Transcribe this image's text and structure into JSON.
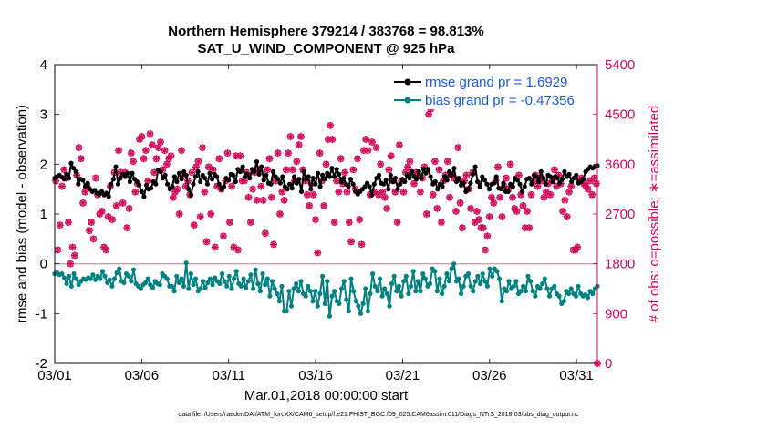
{
  "chart_data": {
    "type": "line",
    "title": "Northern Hemisphere 379214 / 383768 = 98.813%",
    "subtitle": "SAT_U_WIND_COMPONENT @ 925 hPa",
    "xlabel": "Mar.01,2018 00:00:00 start",
    "ylabel_left": "rmse and bias (model - observation)",
    "ylabel_right": "# of obs: o=possible; ∗=assimilated",
    "footer": "data file: /Users/raeder/DAI/ATM_forcXX/CAM6_setup/f.e21.FHIST_BGC.f09_025.CAM6assim.011/Diags_NTrS_2018-03/obs_diag_output.nc",
    "x_ticks": [
      "03/01",
      "03/06",
      "03/11",
      "03/16",
      "03/21",
      "03/26",
      "03/31"
    ],
    "x_tick_days": [
      1,
      6,
      11,
      16,
      21,
      26,
      31
    ],
    "xlim": [
      1,
      32.2
    ],
    "y_left_ticks": [
      "-2",
      "-1",
      "0",
      "1",
      "2",
      "3",
      "4"
    ],
    "ylim_left": [
      -2,
      4
    ],
    "y_right_ticks": [
      "0",
      "900",
      "1800",
      "2700",
      "3600",
      "4500",
      "5400"
    ],
    "ylim_right": [
      0,
      5400
    ],
    "zero_line": 0,
    "colors": {
      "rmse": "#000000",
      "bias": "#00807f",
      "obs": "#cc0a5a",
      "legend_text": "#1a5bd8",
      "zero_line": "#c8a3a8"
    },
    "series": [
      {
        "name": "rmse grand pr = 1.6929",
        "values": [
          1.72,
          1.75,
          1.78,
          1.74,
          1.7,
          1.8,
          1.72,
          2.02,
          1.92,
          1.85,
          1.6,
          1.7,
          1.68,
          1.55,
          1.62,
          1.5,
          1.45,
          1.48,
          1.42,
          1.4,
          1.45,
          1.38,
          1.42,
          1.35,
          1.6,
          1.7,
          1.95,
          1.6,
          1.72,
          1.8,
          1.75,
          1.82,
          1.65,
          1.82,
          1.7,
          1.65,
          1.58,
          1.45,
          1.35,
          1.58,
          1.5,
          1.52,
          1.65,
          1.6,
          1.88,
          1.85,
          1.72,
          1.78,
          1.6,
          1.5,
          1.55,
          1.75,
          1.65,
          1.82,
          1.7,
          1.85,
          1.78,
          1.5,
          1.38,
          1.6,
          1.75,
          1.85,
          1.65,
          1.78,
          1.72,
          1.6,
          1.82,
          1.7,
          1.8,
          1.75,
          1.6,
          1.5,
          1.55,
          1.72,
          1.68,
          1.8,
          1.78,
          1.65,
          1.9,
          1.85,
          1.95,
          1.75,
          1.8,
          1.72,
          1.9,
          1.85,
          2.05,
          1.8,
          1.95,
          1.68,
          1.78,
          1.62,
          1.6,
          1.85,
          1.75,
          1.7,
          1.62,
          1.75,
          1.55,
          1.5,
          1.6,
          1.52,
          1.75,
          1.62,
          1.7,
          1.45,
          1.85,
          1.7,
          1.75,
          1.5,
          1.72,
          1.6,
          1.82,
          1.55,
          1.78,
          1.7,
          1.82,
          1.75,
          1.92,
          1.75,
          1.9,
          1.8,
          1.65,
          1.72,
          1.6,
          1.55,
          1.7,
          1.6,
          1.45,
          1.4,
          1.45,
          1.5,
          1.55,
          1.62,
          1.55,
          1.38,
          1.6,
          1.72,
          1.78,
          1.62,
          1.6,
          1.68,
          1.5,
          1.78,
          1.65,
          1.72,
          1.5,
          1.6,
          1.7,
          1.65,
          1.78,
          1.72,
          1.85,
          1.75,
          1.7,
          1.85,
          1.72,
          1.9,
          1.82,
          1.9,
          1.75,
          1.6,
          1.65,
          1.5,
          1.6,
          1.55,
          1.75,
          1.68,
          1.85,
          1.78,
          1.92,
          1.65,
          1.72,
          1.58,
          1.62,
          1.45,
          1.5,
          1.62,
          1.8,
          1.95,
          1.65,
          1.55,
          1.75,
          1.68,
          1.6,
          1.5,
          1.6,
          1.62,
          1.75,
          1.52,
          1.5,
          1.62,
          1.45,
          1.45,
          1.6,
          1.55,
          1.72,
          1.68,
          1.6,
          1.45,
          1.55,
          1.7,
          1.72,
          1.6,
          1.78,
          1.75,
          1.65,
          1.85,
          1.72,
          1.6,
          1.78,
          1.75,
          1.65,
          1.75,
          1.72,
          1.62,
          1.7,
          1.85,
          1.75,
          1.8,
          1.65,
          1.72,
          1.78,
          1.62,
          1.65,
          1.7,
          1.85,
          1.9,
          1.95,
          1.92,
          1.95,
          1.97
        ]
      },
      {
        "name": "bias grand pr = -0.47356",
        "values": [
          -0.2,
          -0.18,
          -0.22,
          -0.2,
          -0.28,
          -0.4,
          -0.25,
          -0.45,
          -0.2,
          -0.3,
          -0.42,
          -0.35,
          -0.3,
          -0.32,
          -0.28,
          -0.3,
          -0.22,
          -0.32,
          -0.25,
          -0.3,
          -0.15,
          -0.25,
          -0.38,
          -0.32,
          -0.45,
          -0.3,
          -0.18,
          -0.1,
          -0.35,
          -0.38,
          -0.2,
          -0.25,
          -0.35,
          -0.12,
          -0.4,
          -0.45,
          -0.5,
          -0.42,
          -0.38,
          -0.3,
          -0.42,
          -0.48,
          -0.35,
          -0.4,
          -0.42,
          -0.2,
          -0.25,
          -0.3,
          -0.45,
          -0.45,
          -0.55,
          -0.25,
          -0.38,
          -0.3,
          -0.45,
          0.02,
          -0.5,
          -0.2,
          -0.42,
          -0.3,
          -0.55,
          -0.5,
          -0.35,
          -0.48,
          -0.38,
          -0.3,
          -0.42,
          -0.28,
          -0.35,
          -0.4,
          -0.2,
          -0.35,
          -0.45,
          -0.25,
          -0.5,
          -0.3,
          -0.15,
          -0.4,
          -0.45,
          -0.3,
          -0.48,
          -0.35,
          -0.22,
          -0.5,
          -0.12,
          -0.4,
          -0.55,
          -0.2,
          -0.42,
          -0.3,
          -0.65,
          -0.35,
          -0.5,
          -0.6,
          -0.75,
          -0.45,
          -0.95,
          -0.95,
          -0.55,
          -0.85,
          -0.5,
          -0.4,
          -0.55,
          -0.35,
          -0.6,
          -0.65,
          -0.45,
          -0.55,
          -0.75,
          -0.55,
          -0.85,
          -0.6,
          -0.25,
          -0.8,
          -0.35,
          -1.05,
          -0.65,
          -0.55,
          -0.75,
          -0.8,
          -0.5,
          -0.35,
          -0.72,
          -0.95,
          -0.3,
          -0.55,
          -0.75,
          -0.85,
          -1.0,
          -0.8,
          -0.5,
          -0.95,
          -0.6,
          -0.2,
          -0.45,
          -0.55,
          -0.3,
          -0.65,
          -0.5,
          -0.6,
          -0.85,
          -0.4,
          -0.25,
          -0.55,
          -0.45,
          -0.65,
          -0.35,
          -0.25,
          -0.6,
          -0.45,
          -0.15,
          -0.55,
          -0.35,
          -0.55,
          -0.2,
          -0.3,
          -0.45,
          -0.4,
          -0.1,
          -0.15,
          -0.55,
          -0.3,
          -0.6,
          -0.45,
          -0.2,
          -0.35,
          -0.1,
          0.0,
          -0.35,
          -0.3,
          -0.6,
          -0.45,
          -0.25,
          -0.2,
          -0.45,
          -0.55,
          -0.35,
          -0.25,
          -0.4,
          -0.2,
          -0.35,
          -0.45,
          -0.1,
          -0.25,
          -0.1,
          -0.15,
          -0.3,
          -0.75,
          -0.5,
          -0.55,
          -0.35,
          -0.5,
          -0.45,
          -0.35,
          -0.6,
          -0.55,
          -0.45,
          -0.55,
          -0.25,
          -0.35,
          -0.55,
          -0.65,
          -0.45,
          -0.5,
          -0.4,
          -0.3,
          -0.5,
          -0.65,
          -0.5,
          -0.45,
          -0.6,
          -0.65,
          -0.8,
          -0.75,
          -0.55,
          -0.6,
          -0.5,
          -0.6,
          -0.65,
          -0.45,
          -0.6,
          -0.65,
          -0.62,
          -0.68,
          -0.55,
          -0.6,
          -0.5,
          -0.45
        ]
      }
    ],
    "obs_counts": [
      3300,
      2050,
      2500,
      3200,
      3500,
      3350,
      2550,
      1800,
      2100,
      1950,
      3400,
      3900,
      3700,
      2900,
      3100,
      3200,
      2400,
      2550,
      2250,
      3350,
      3050,
      2700,
      2750,
      2100,
      2050,
      2650,
      3200,
      2600,
      3450,
      2850,
      3850,
      3450,
      2900,
      3450,
      2450,
      2800,
      3800,
      3650,
      3100,
      3250,
      4050,
      4100,
      3700,
      3850,
      3300,
      4150,
      3950,
      3450,
      3700,
      3900,
      4000,
      3500,
      3850,
      3600,
      3700,
      3750,
      3000,
      3100,
      3150,
      2700,
      3850,
      3400,
      3200,
      3300,
      3050,
      3450,
      2500,
      3550,
      3650,
      2650,
      3900,
      3100,
      2200,
      3550,
      2700,
      3500,
      2100,
      3200,
      3700,
      3150,
      2300,
      3300,
      3800,
      2550,
      3200,
      2100,
      3750,
      2050,
      3750,
      3300,
      3300,
      3450,
      3000,
      2550,
      3150,
      3450,
      2950,
      3500,
      3200,
      2950,
      2350,
      3500,
      3700,
      3000,
      2150,
      3300,
      3800,
      2700,
      3100,
      2950,
      3500,
      3800,
      4100,
      3500,
      3300,
      3650,
      3950,
      4100,
      3500,
      3300,
      3050,
      2850,
      3250,
      3050,
      2600,
      2000,
      3800,
      3300,
      2850,
      3600,
      4050,
      4300,
      4050,
      2550,
      3300,
      3100,
      3700,
      3250,
      3450,
      3100,
      2550,
      2200,
      3500,
      3150,
      3700,
      2600,
      2150,
      3850,
      4050,
      3850,
      3050,
      4000,
      3100,
      3900,
      3050,
      3600,
      3100,
      3000,
      2800,
      3500,
      3750,
      3300,
      3100,
      2550,
      3950,
      3300,
      3100,
      3450,
      3550,
      3650,
      3450,
      3250,
      3450,
      3400,
      3100,
      3350,
      3550,
      2700,
      4500,
      4600,
      3050,
      3650,
      2800,
      3500,
      2550,
      3300,
      3400,
      3650,
      3000,
      3400,
      3350,
      2750,
      3900,
      2900,
      2450,
      3300,
      3400,
      3150,
      2800,
      3450,
      2550,
      2750,
      2600,
      2450,
      2450,
      2050,
      2300,
      2650,
      3000,
      2900,
      3300,
      3550,
      3000,
      2650,
      3200,
      3350,
      3150,
      3600,
      3000,
      2800,
      2750,
      3400,
      3050,
      2850,
      2450,
      2750,
      2450,
      3050,
      3300,
      3400,
      3200,
      3350,
      3300,
      3000,
      3100,
      3250,
      3050,
      3300,
      3500,
      3200,
      3400,
      3250,
      2750,
      2950,
      2650,
      3100,
      3200,
      2050,
      2050,
      2100,
      3300,
      3350,
      3250,
      3200,
      3150,
      3300,
      3050,
      3350,
      3250
    ]
  }
}
